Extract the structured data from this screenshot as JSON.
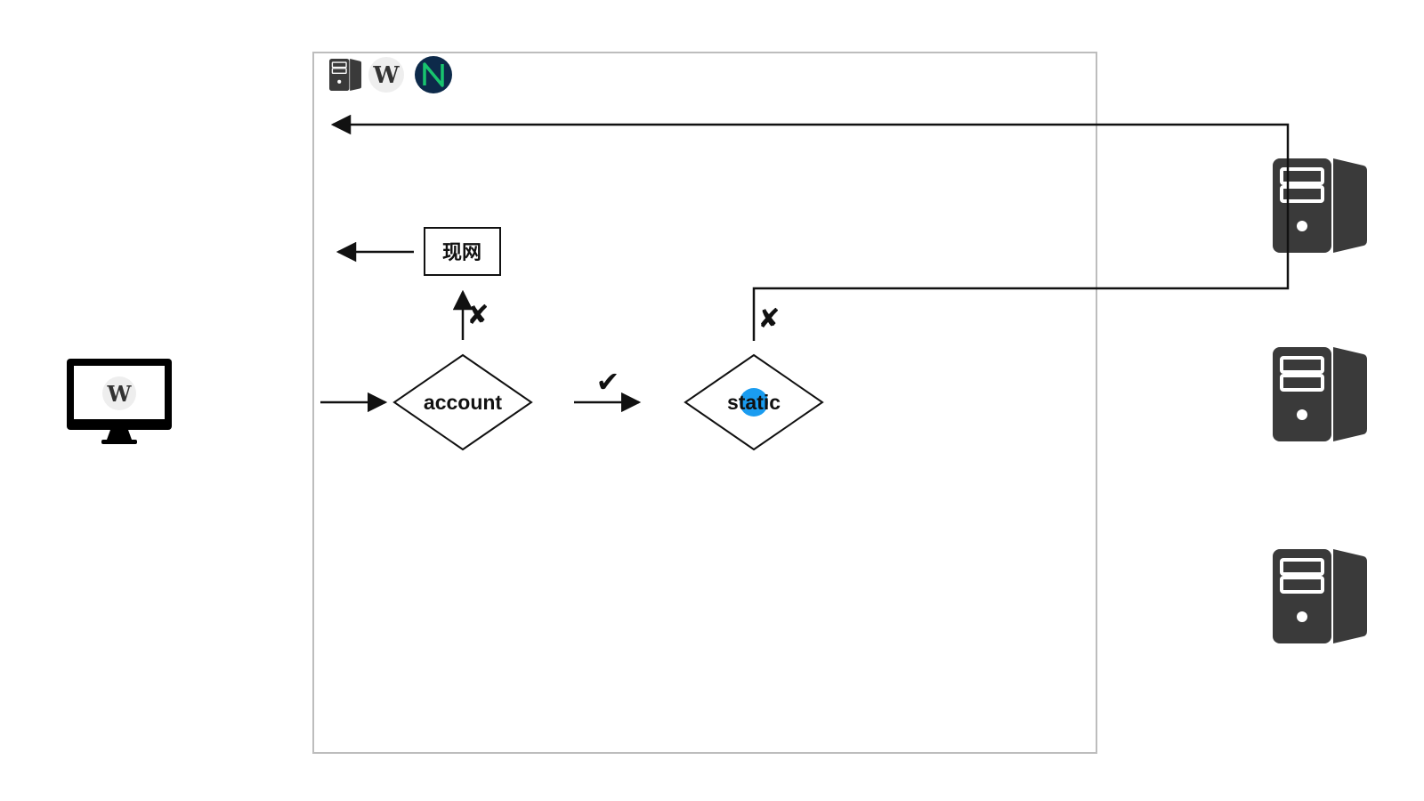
{
  "nodes": {
    "account": "account",
    "static": "static",
    "prod": "现网"
  },
  "marks": {
    "account_to_prod": "✘",
    "static_to_server": "✘",
    "account_to_static": "✔"
  },
  "colors": {
    "line": "#111111",
    "frame": "#bdbdbd",
    "server": "#3a3a3a",
    "dot": "#1a9cf0",
    "nginx_bg": "#0d2a4a",
    "nginx_fg": "#18c46e"
  }
}
